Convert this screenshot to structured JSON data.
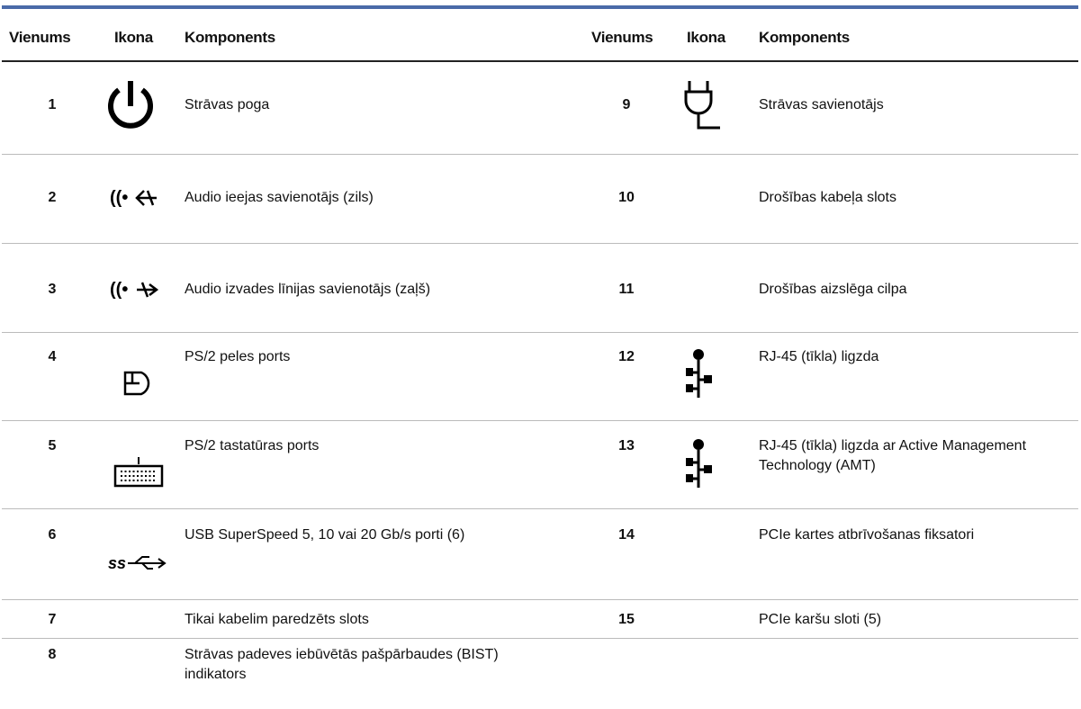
{
  "table": {
    "header": [
      "Vienums",
      "Ikona",
      "Komponents",
      "Vienums",
      "Ikona",
      "Komponents"
    ],
    "rows": [
      {
        "left": {
          "item": "1",
          "component": "Strāvas poga"
        },
        "right": {
          "item": "9",
          "component": "Strāvas savienotājs"
        }
      },
      {
        "left": {
          "item": "2",
          "component": "Audio ieejas savienotājs (zils)"
        },
        "right": {
          "item": "10",
          "component": "Drošības kabeļa slots"
        }
      },
      {
        "left": {
          "item": "3",
          "component": "Audio izvades līnijas savienotājs (zaļš)"
        },
        "right": {
          "item": "11",
          "component": "Drošības aizslēga cilpa"
        }
      },
      {
        "left": {
          "item": "4",
          "component": "PS/2 peles ports"
        },
        "right": {
          "item": "12",
          "component": "RJ-45 (tīkla) ligzda"
        }
      },
      {
        "left": {
          "item": "5",
          "component": "PS/2 tastatūras ports"
        },
        "right": {
          "item": "13",
          "component": "RJ-45 (tīkla) ligzda ar Active Management Technology (AMT)"
        }
      },
      {
        "left": {
          "item": "6",
          "component": "USB SuperSpeed 5, 10 vai 20 Gb/s porti (6)"
        },
        "right": {
          "item": "14",
          "component": "PCIe kartes atbrīvošanas fiksatori"
        }
      },
      {
        "left": {
          "item": "7",
          "component": "Tikai kabelim paredzēts slots"
        },
        "right": {
          "item": "15",
          "component": "PCIe karšu sloti (5)"
        }
      },
      {
        "left": {
          "item": "8",
          "component": "Strāvas padeves iebūvētās pašpārbaudes (BIST) indikators"
        }
      }
    ]
  }
}
